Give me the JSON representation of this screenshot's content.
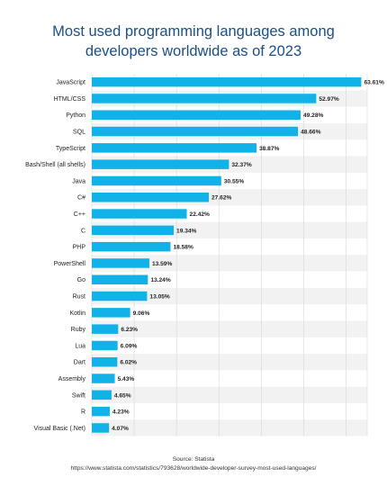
{
  "colors": {
    "bar": "#11b2e8",
    "title": "#1a4f86",
    "text": "#222222",
    "row_band": "#f2f2f2",
    "grid": "#d7d7d7"
  },
  "source": {
    "line1": "Source: Statista",
    "line2": "https://www.statista.com/statistics/793628/worldwide-developer-survey-most-used-languages/"
  },
  "chart_data": {
    "type": "bar",
    "orientation": "horizontal",
    "title": "Most used programming languages among developers worldwide as of 2023",
    "xlabel": "",
    "ylabel": "",
    "xlim": [
      0,
      65
    ],
    "grid": true,
    "legend": "none",
    "value_suffix": "%",
    "categories": [
      "JavaScript",
      "HTML/CSS",
      "Python",
      "SQL",
      "TypeScript",
      "Bash/Shell (all shells)",
      "Java",
      "C#",
      "C++",
      "C",
      "PHP",
      "PowerShell",
      "Go",
      "Rust",
      "Kotlin",
      "Ruby",
      "Lua",
      "Dart",
      "Assembly",
      "Swift",
      "R",
      "Visual Basic (.Net)"
    ],
    "values": [
      63.61,
      52.97,
      49.28,
      48.66,
      38.87,
      32.37,
      30.55,
      27.62,
      22.42,
      19.34,
      18.58,
      13.59,
      13.24,
      13.05,
      9.06,
      6.23,
      6.09,
      6.02,
      5.43,
      4.65,
      4.23,
      4.07
    ]
  }
}
